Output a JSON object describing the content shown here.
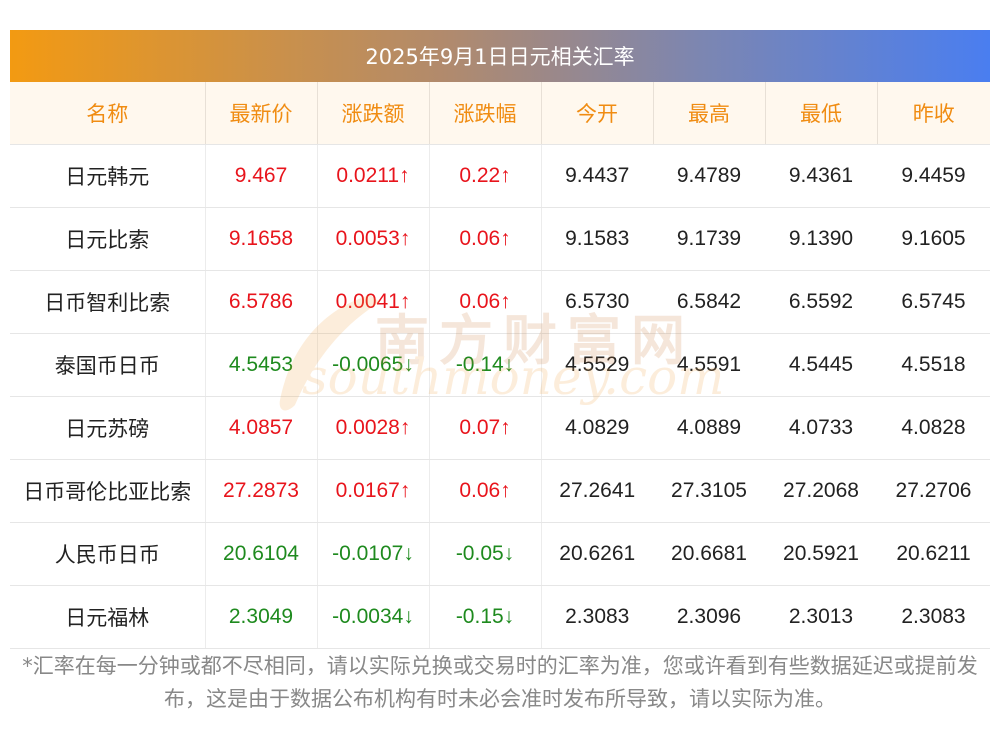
{
  "title": "2025年9月1日日元相关汇率",
  "columns": [
    "名称",
    "最新价",
    "涨跌额",
    "涨跌幅",
    "今开",
    "最高",
    "最低",
    "昨收"
  ],
  "rows": [
    {
      "name": "日元韩元",
      "latest": "9.467",
      "change": "0.0211↑",
      "pct": "0.22↑",
      "open": "9.4437",
      "high": "9.4789",
      "low": "9.4361",
      "prev": "9.4459",
      "dir": "up"
    },
    {
      "name": "日元比索",
      "latest": "9.1658",
      "change": "0.0053↑",
      "pct": "0.06↑",
      "open": "9.1583",
      "high": "9.1739",
      "low": "9.1390",
      "prev": "9.1605",
      "dir": "up"
    },
    {
      "name": "日币智利比索",
      "latest": "6.5786",
      "change": "0.0041↑",
      "pct": "0.06↑",
      "open": "6.5730",
      "high": "6.5842",
      "low": "6.5592",
      "prev": "6.5745",
      "dir": "up"
    },
    {
      "name": "泰国币日币",
      "latest": "4.5453",
      "change": "-0.0065↓",
      "pct": "-0.14↓",
      "open": "4.5529",
      "high": "4.5591",
      "low": "4.5445",
      "prev": "4.5518",
      "dir": "down"
    },
    {
      "name": "日元苏磅",
      "latest": "4.0857",
      "change": "0.0028↑",
      "pct": "0.07↑",
      "open": "4.0829",
      "high": "4.0889",
      "low": "4.0733",
      "prev": "4.0828",
      "dir": "up"
    },
    {
      "name": "日币哥伦比亚比索",
      "latest": "27.2873",
      "change": "0.0167↑",
      "pct": "0.06↑",
      "open": "27.2641",
      "high": "27.3105",
      "low": "27.2068",
      "prev": "27.2706",
      "dir": "up"
    },
    {
      "name": "人民币日币",
      "latest": "20.6104",
      "change": "-0.0107↓",
      "pct": "-0.05↓",
      "open": "20.6261",
      "high": "20.6681",
      "low": "20.5921",
      "prev": "20.6211",
      "dir": "down"
    },
    {
      "name": "日元福林",
      "latest": "2.3049",
      "change": "-0.0034↓",
      "pct": "-0.15↓",
      "open": "2.3083",
      "high": "2.3096",
      "low": "2.3013",
      "prev": "2.3083",
      "dir": "down"
    }
  ],
  "watermark": {
    "cn": "南方财富网",
    "en": "southmoney.com"
  },
  "footnote": "*汇率在每一分钟或都不尽相同，请以实际兑换或交易时的汇率为准，您或许看到有些数据延迟或提前发布，这是由于数据公布机构有时未必会准时发布所导致，请以实际为准。",
  "colors": {
    "up": "#e8141c",
    "down": "#1e8a1e",
    "header_text": "#f08c12",
    "title_start": "#f39a12",
    "title_end": "#4a7ef0"
  }
}
